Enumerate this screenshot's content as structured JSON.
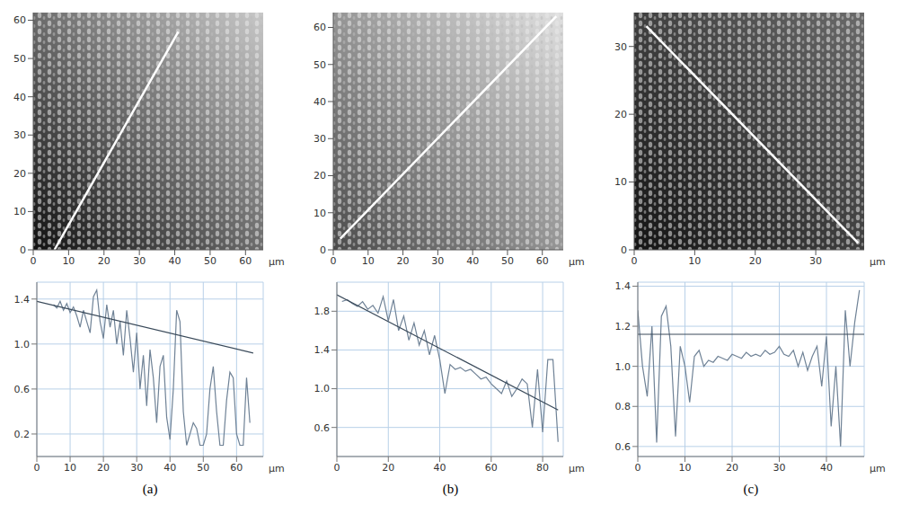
{
  "chart_data": [
    {
      "type": "image",
      "xlim": [
        0,
        65
      ],
      "ylim": [
        0,
        62
      ],
      "xticks": [
        0,
        10,
        20,
        30,
        40,
        50,
        60
      ],
      "yticks": [
        0,
        10,
        20,
        30,
        40,
        50,
        60
      ],
      "x_unit": "µm",
      "line": {
        "x": [
          6,
          41
        ],
        "y": [
          0,
          57
        ]
      }
    },
    {
      "type": "image",
      "xlim": [
        0,
        66
      ],
      "ylim": [
        0,
        64
      ],
      "xticks": [
        0,
        10,
        20,
        30,
        40,
        50,
        60
      ],
      "yticks": [
        0,
        10,
        20,
        30,
        40,
        50,
        60
      ],
      "x_unit": "µm",
      "line": {
        "x": [
          2,
          64
        ],
        "y": [
          3,
          63
        ]
      }
    },
    {
      "type": "image",
      "xlim": [
        0,
        38
      ],
      "ylim": [
        0,
        35
      ],
      "xticks": [
        0,
        10,
        20,
        30
      ],
      "yticks": [
        0,
        10,
        20,
        30
      ],
      "x_unit": "µm",
      "line": {
        "x": [
          2,
          37
        ],
        "y": [
          33,
          1
        ]
      }
    },
    {
      "type": "line",
      "panel_label": "(a)",
      "xlim": [
        0,
        68
      ],
      "ylim": [
        0,
        1.55
      ],
      "xticks": [
        0,
        10,
        20,
        30,
        40,
        50,
        60
      ],
      "yticks": [
        0.2,
        0.6,
        {
          "value": 1,
          "label": "1.0"
        },
        1.4
      ],
      "x_unit": "µm",
      "grid": true,
      "series": [
        {
          "color": "#6f8296",
          "x": [
            5,
            6,
            7,
            8,
            9,
            10,
            11,
            12,
            13,
            14,
            15,
            16,
            17,
            18,
            19,
            20,
            21,
            22,
            23,
            24,
            25,
            26,
            27,
            28,
            29,
            30,
            31,
            32,
            33,
            34,
            35,
            36,
            37,
            38,
            39,
            40,
            41,
            42,
            43,
            44,
            45,
            46,
            47,
            48,
            49,
            50,
            51,
            52,
            53,
            54,
            55,
            56,
            57,
            58,
            59,
            60,
            61,
            62,
            63,
            64
          ],
          "values": [
            1.35,
            1.32,
            1.38,
            1.3,
            1.36,
            1.28,
            1.33,
            1.25,
            1.15,
            1.3,
            1.2,
            1.1,
            1.42,
            1.48,
            1.2,
            1.05,
            1.35,
            1.15,
            1.3,
            1.0,
            1.2,
            0.9,
            1.3,
            1.05,
            0.75,
            1.1,
            0.6,
            0.9,
            0.45,
            0.95,
            0.7,
            0.3,
            0.8,
            0.9,
            0.35,
            0.15,
            0.6,
            1.3,
            1.2,
            0.4,
            0.1,
            0.2,
            0.3,
            0.25,
            0.1,
            0.1,
            0.2,
            0.6,
            0.8,
            0.4,
            0.1,
            0.1,
            0.5,
            0.75,
            0.7,
            0.2,
            0.1,
            0.1,
            0.7,
            0.3
          ]
        },
        {
          "color": "#3a4a5a",
          "x": [
            0,
            65
          ],
          "values": [
            1.38,
            0.92
          ]
        }
      ]
    },
    {
      "type": "line",
      "panel_label": "(b)",
      "xlim": [
        0,
        88
      ],
      "ylim": [
        0.3,
        2.1
      ],
      "xticks": [
        0,
        20,
        40,
        60,
        80
      ],
      "yticks": [
        0.6,
        {
          "value": 1,
          "label": "1.0"
        },
        1.4,
        1.8
      ],
      "x_unit": "µm",
      "grid": true,
      "series": [
        {
          "color": "#6f8296",
          "x": [
            2,
            4,
            6,
            8,
            10,
            12,
            14,
            16,
            18,
            20,
            22,
            24,
            26,
            28,
            30,
            32,
            34,
            36,
            38,
            40,
            42,
            44,
            46,
            48,
            50,
            52,
            54,
            56,
            58,
            60,
            62,
            64,
            66,
            68,
            70,
            72,
            74,
            76,
            78,
            80,
            82,
            84,
            86
          ],
          "values": [
            1.9,
            1.92,
            1.88,
            1.85,
            1.9,
            1.82,
            1.86,
            1.78,
            1.95,
            1.7,
            1.92,
            1.6,
            1.75,
            1.5,
            1.68,
            1.45,
            1.6,
            1.35,
            1.55,
            1.3,
            0.95,
            1.25,
            1.2,
            1.22,
            1.18,
            1.2,
            1.15,
            1.1,
            1.12,
            1.05,
            1.0,
            0.95,
            1.08,
            0.92,
            1.0,
            1.1,
            1.05,
            0.6,
            1.2,
            0.55,
            1.3,
            1.3,
            0.45
          ]
        },
        {
          "color": "#3a4a5a",
          "x": [
            0,
            86
          ],
          "values": [
            1.97,
            0.78
          ]
        }
      ]
    },
    {
      "type": "line",
      "panel_label": "(c)",
      "xlim": [
        0,
        48
      ],
      "ylim": [
        0.55,
        1.42
      ],
      "xticks": [
        0,
        10,
        20,
        30,
        40
      ],
      "yticks": [
        0.6,
        0.8,
        {
          "value": 1,
          "label": "1.0"
        },
        1.2,
        1.4
      ],
      "x_unit": "µm",
      "grid": true,
      "series": [
        {
          "color": "#6f8296",
          "x": [
            0,
            1,
            2,
            3,
            4,
            5,
            6,
            7,
            8,
            9,
            10,
            11,
            12,
            13,
            14,
            15,
            16,
            17,
            18,
            19,
            20,
            21,
            22,
            23,
            24,
            25,
            26,
            27,
            28,
            29,
            30,
            31,
            32,
            33,
            34,
            35,
            36,
            37,
            38,
            39,
            40,
            41,
            42,
            43,
            44,
            45,
            46,
            47
          ],
          "values": [
            1.28,
            1.0,
            0.85,
            1.2,
            0.62,
            1.25,
            1.3,
            1.1,
            0.65,
            1.1,
            1.0,
            0.82,
            1.05,
            1.08,
            1.0,
            1.03,
            1.02,
            1.05,
            1.04,
            1.03,
            1.06,
            1.05,
            1.04,
            1.07,
            1.05,
            1.06,
            1.05,
            1.08,
            1.06,
            1.07,
            1.1,
            1.06,
            1.05,
            1.08,
            1.0,
            1.07,
            0.98,
            1.05,
            1.1,
            0.9,
            1.15,
            0.7,
            1.0,
            0.6,
            1.28,
            1.0,
            1.22,
            1.38
          ]
        },
        {
          "color": "#3a4a5a",
          "x": [
            0,
            48
          ],
          "values": [
            1.16,
            1.16
          ]
        }
      ]
    }
  ]
}
